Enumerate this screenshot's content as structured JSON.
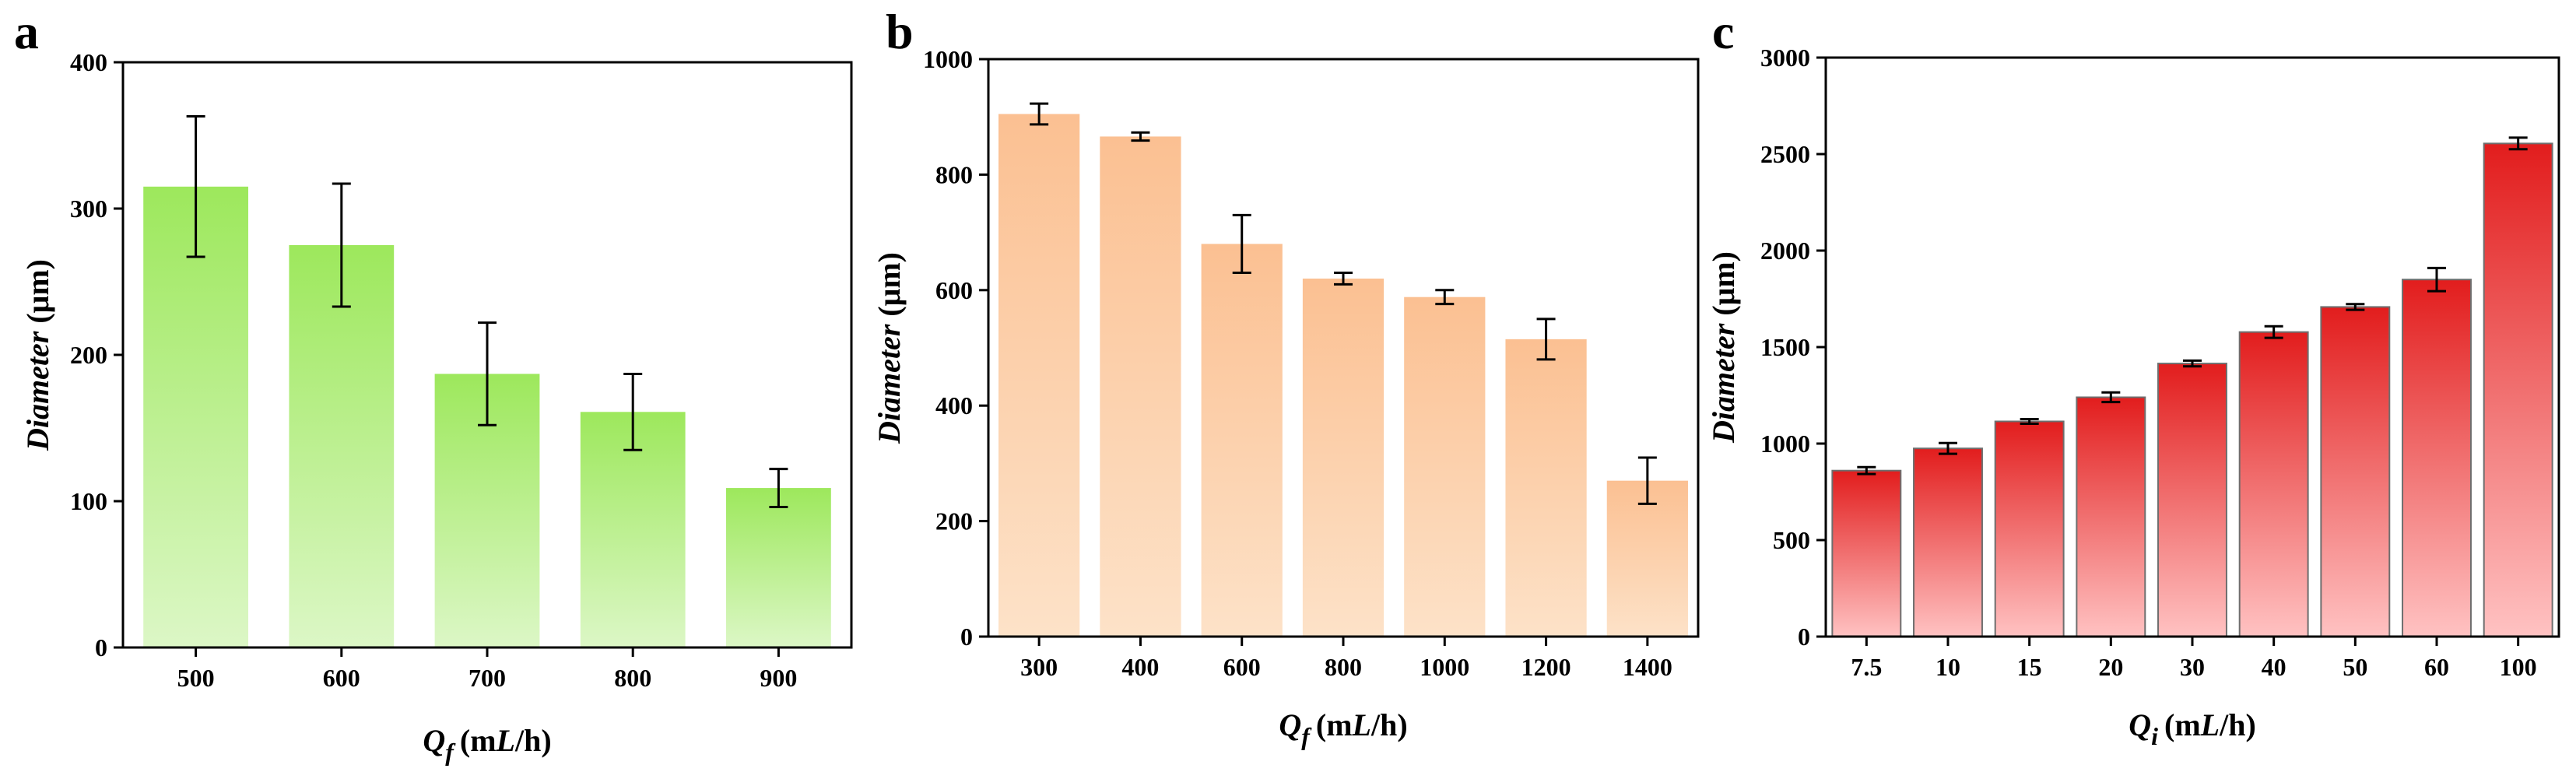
{
  "chart_data": [
    {
      "panel": "a",
      "type": "bar",
      "xlabel_var": "Q",
      "xlabel_sub": "f",
      "xlabel_unit_open": "(m",
      "xlabel_unit_L": "L",
      "xlabel_unit_close": "/h)",
      "ylabel_var": "Diameter",
      "ylabel_unit": "(μm)",
      "categories": [
        "500",
        "600",
        "700",
        "800",
        "900"
      ],
      "values": [
        315,
        275,
        187,
        161,
        109
      ],
      "errors": [
        48,
        42,
        35,
        26,
        13
      ],
      "ylim": [
        0,
        400
      ],
      "yticks": [
        0,
        100,
        200,
        300,
        400
      ],
      "colors": {
        "top": "#9de85c",
        "bottom": "#dcf7c6",
        "edge": "none"
      }
    },
    {
      "panel": "b",
      "type": "bar",
      "xlabel_var": "Q",
      "xlabel_sub": "f",
      "xlabel_unit_open": "(m",
      "xlabel_unit_L": "L",
      "xlabel_unit_close": "/h)",
      "ylabel_var": "Diameter",
      "ylabel_unit": "(μm)",
      "categories": [
        "300",
        "400",
        "600",
        "800",
        "1000",
        "1200",
        "1400"
      ],
      "values": [
        905,
        866,
        680,
        620,
        588,
        515,
        270
      ],
      "errors": [
        18,
        7,
        50,
        10,
        12,
        35,
        40
      ],
      "ylim": [
        0,
        1000
      ],
      "yticks": [
        0,
        200,
        400,
        600,
        800,
        1000
      ],
      "colors": {
        "top": "#fbc092",
        "bottom": "#fde2c8",
        "edge": "none"
      }
    },
    {
      "panel": "c",
      "type": "bar",
      "xlabel_var": "Q",
      "xlabel_sub": "i",
      "xlabel_unit_open": "(m",
      "xlabel_unit_L": "L",
      "xlabel_unit_close": "/h)",
      "ylabel_var": "Diameter",
      "ylabel_unit": "(μm)",
      "categories": [
        "7.5",
        "10",
        "15",
        "20",
        "30",
        "40",
        "50",
        "60",
        "100"
      ],
      "values": [
        860,
        975,
        1115,
        1240,
        1415,
        1578,
        1708,
        1850,
        2555
      ],
      "errors": [
        18,
        28,
        12,
        25,
        15,
        30,
        15,
        60,
        30
      ],
      "ylim": [
        0,
        3000
      ],
      "yticks": [
        0,
        500,
        1000,
        1500,
        2000,
        2500,
        3000
      ],
      "colors": {
        "top": "#e21d1d",
        "bottom": "#ffc2c2",
        "edge": "#6e6e6e"
      }
    }
  ]
}
